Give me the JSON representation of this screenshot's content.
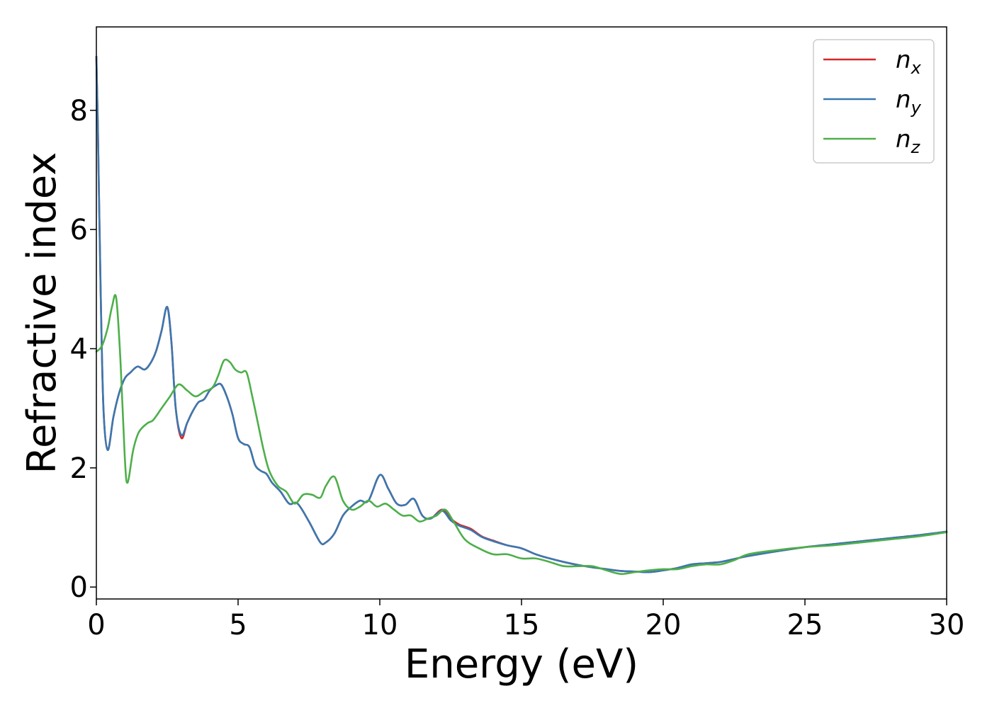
{
  "chart_data": {
    "type": "line",
    "xlabel": "Energy (eV)",
    "ylabel": "Refractive index",
    "xlim": [
      0,
      30
    ],
    "ylim": [
      -0.2,
      9.4
    ],
    "xticks": [
      0,
      5,
      10,
      15,
      20,
      25,
      30
    ],
    "xtick_labels": [
      "0",
      "5",
      "10",
      "15",
      "20",
      "25",
      "30"
    ],
    "yticks": [
      0,
      2,
      4,
      6,
      8
    ],
    "ytick_labels": [
      "0",
      "2",
      "4",
      "6",
      "8"
    ],
    "grid": false,
    "legend_position": "top-right",
    "series": [
      {
        "name": "x",
        "color": "#d62728",
        "x": [
          0,
          0.05,
          0.15,
          0.25,
          0.4,
          0.6,
          0.8,
          1.0,
          1.2,
          1.45,
          1.7,
          1.9,
          2.1,
          2.3,
          2.5,
          2.65,
          2.8,
          3.0,
          3.2,
          3.4,
          3.6,
          3.8,
          4.0,
          4.2,
          4.4,
          4.6,
          4.8,
          5.0,
          5.2,
          5.4,
          5.6,
          5.8,
          6.0,
          6.2,
          6.5,
          6.8,
          7.1,
          7.5,
          7.9,
          8.1,
          8.4,
          8.7,
          9.0,
          9.3,
          9.6,
          10.0,
          10.3,
          10.6,
          10.9,
          11.2,
          11.5,
          11.8,
          12.2,
          12.5,
          12.8,
          13.2,
          13.6,
          14.0,
          14.5,
          15.0,
          15.5,
          16.0,
          16.5,
          17.0,
          17.5,
          18.0,
          18.5,
          19.0,
          19.5,
          20.0,
          20.5,
          21.0,
          21.5,
          22.0,
          22.5,
          23.0,
          24.0,
          25.0,
          26.0,
          27.0,
          28.0,
          29.0,
          30.0
        ],
        "y": [
          8.9,
          7.8,
          5.0,
          3.0,
          2.3,
          2.85,
          3.25,
          3.5,
          3.6,
          3.7,
          3.65,
          3.75,
          3.95,
          4.3,
          4.7,
          4.1,
          3.0,
          2.5,
          2.75,
          2.95,
          3.1,
          3.15,
          3.3,
          3.38,
          3.4,
          3.2,
          2.9,
          2.5,
          2.4,
          2.35,
          2.05,
          1.95,
          1.9,
          1.75,
          1.6,
          1.4,
          1.4,
          1.1,
          0.75,
          0.75,
          0.9,
          1.2,
          1.35,
          1.45,
          1.45,
          1.88,
          1.65,
          1.4,
          1.38,
          1.48,
          1.2,
          1.15,
          1.3,
          1.15,
          1.05,
          0.98,
          0.85,
          0.78,
          0.7,
          0.65,
          0.55,
          0.48,
          0.42,
          0.37,
          0.33,
          0.3,
          0.27,
          0.26,
          0.25,
          0.28,
          0.32,
          0.38,
          0.4,
          0.42,
          0.47,
          0.52,
          0.6,
          0.67,
          0.72,
          0.77,
          0.82,
          0.87,
          0.93
        ]
      },
      {
        "name": "y",
        "color": "#3a78b0",
        "x": [
          0,
          0.05,
          0.15,
          0.25,
          0.4,
          0.6,
          0.8,
          1.0,
          1.2,
          1.45,
          1.7,
          1.9,
          2.1,
          2.3,
          2.5,
          2.65,
          2.8,
          3.0,
          3.2,
          3.4,
          3.6,
          3.8,
          4.0,
          4.2,
          4.4,
          4.6,
          4.8,
          5.0,
          5.2,
          5.4,
          5.6,
          5.8,
          6.0,
          6.2,
          6.5,
          6.8,
          7.1,
          7.5,
          7.9,
          8.1,
          8.4,
          8.7,
          9.0,
          9.3,
          9.6,
          10.0,
          10.3,
          10.6,
          10.9,
          11.2,
          11.5,
          11.8,
          12.2,
          12.5,
          12.8,
          13.2,
          13.6,
          14.0,
          14.5,
          15.0,
          15.5,
          16.0,
          16.5,
          17.0,
          17.5,
          18.0,
          18.5,
          19.0,
          19.5,
          20.0,
          20.5,
          21.0,
          21.5,
          22.0,
          22.5,
          23.0,
          24.0,
          25.0,
          26.0,
          27.0,
          28.0,
          29.0,
          30.0
        ],
        "y": [
          8.9,
          7.8,
          5.0,
          3.0,
          2.3,
          2.85,
          3.25,
          3.5,
          3.6,
          3.7,
          3.65,
          3.75,
          3.95,
          4.3,
          4.7,
          4.1,
          3.0,
          2.55,
          2.75,
          2.95,
          3.1,
          3.15,
          3.3,
          3.38,
          3.4,
          3.2,
          2.9,
          2.5,
          2.4,
          2.35,
          2.05,
          1.95,
          1.9,
          1.75,
          1.6,
          1.4,
          1.4,
          1.1,
          0.75,
          0.75,
          0.9,
          1.2,
          1.35,
          1.45,
          1.45,
          1.88,
          1.65,
          1.4,
          1.38,
          1.48,
          1.2,
          1.15,
          1.28,
          1.12,
          1.03,
          0.96,
          0.84,
          0.77,
          0.7,
          0.65,
          0.55,
          0.48,
          0.42,
          0.37,
          0.33,
          0.3,
          0.27,
          0.26,
          0.25,
          0.28,
          0.32,
          0.38,
          0.4,
          0.42,
          0.47,
          0.52,
          0.6,
          0.67,
          0.72,
          0.77,
          0.82,
          0.87,
          0.93
        ]
      },
      {
        "name": "z",
        "color": "#4daf4a",
        "x": [
          0,
          0.2,
          0.4,
          0.55,
          0.7,
          0.85,
          1.0,
          1.1,
          1.3,
          1.5,
          1.8,
          2.0,
          2.3,
          2.6,
          2.9,
          3.2,
          3.5,
          3.8,
          4.1,
          4.3,
          4.5,
          4.7,
          4.9,
          5.1,
          5.3,
          5.5,
          5.7,
          5.9,
          6.1,
          6.4,
          6.7,
          7.0,
          7.3,
          7.6,
          7.9,
          8.1,
          8.4,
          8.7,
          9.0,
          9.3,
          9.6,
          9.9,
          10.2,
          10.5,
          10.8,
          11.1,
          11.4,
          11.7,
          12.0,
          12.3,
          12.6,
          13.0,
          13.5,
          14.0,
          14.5,
          15.0,
          15.5,
          16.0,
          16.5,
          17.0,
          17.5,
          18.0,
          18.5,
          19.0,
          19.5,
          20.0,
          20.5,
          21.0,
          21.5,
          22.0,
          22.5,
          23.0,
          24.0,
          25.0,
          26.0,
          27.0,
          28.0,
          29.0,
          30.0
        ],
        "y": [
          3.95,
          4.05,
          4.35,
          4.7,
          4.85,
          3.8,
          2.2,
          1.75,
          2.3,
          2.6,
          2.75,
          2.8,
          3.0,
          3.2,
          3.4,
          3.3,
          3.2,
          3.28,
          3.35,
          3.55,
          3.8,
          3.78,
          3.65,
          3.6,
          3.6,
          3.2,
          2.75,
          2.3,
          1.95,
          1.7,
          1.6,
          1.4,
          1.55,
          1.55,
          1.5,
          1.7,
          1.85,
          1.45,
          1.3,
          1.35,
          1.45,
          1.35,
          1.4,
          1.3,
          1.2,
          1.2,
          1.1,
          1.15,
          1.2,
          1.3,
          1.1,
          0.8,
          0.65,
          0.55,
          0.55,
          0.48,
          0.48,
          0.42,
          0.35,
          0.35,
          0.35,
          0.28,
          0.22,
          0.25,
          0.28,
          0.3,
          0.3,
          0.35,
          0.38,
          0.38,
          0.45,
          0.55,
          0.62,
          0.67,
          0.7,
          0.75,
          0.8,
          0.85,
          0.92
        ]
      }
    ]
  }
}
